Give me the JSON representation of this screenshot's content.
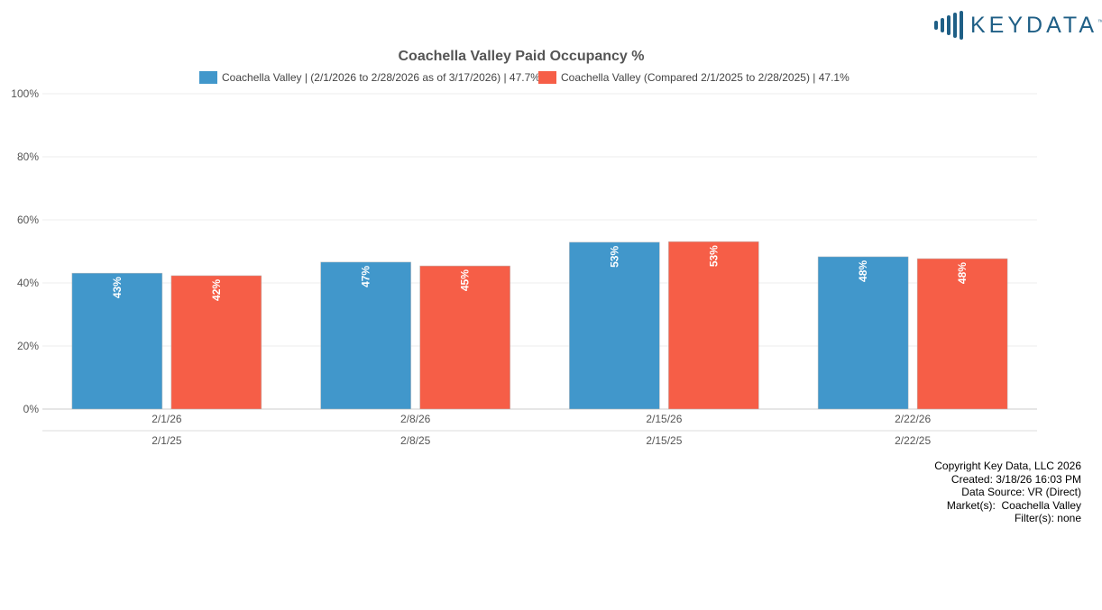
{
  "logo": {
    "text": "KEYDATA",
    "tm": "™"
  },
  "chart_data": {
    "type": "bar",
    "title": "Coachella Valley Paid Occupancy %",
    "categories": [
      "2/1/26",
      "2/8/26",
      "2/15/26",
      "2/22/26"
    ],
    "categories_secondary": [
      "2/1/25",
      "2/8/25",
      "2/15/25",
      "2/22/25"
    ],
    "series": [
      {
        "name": "Coachella Valley | (2/1/2026 to 2/28/2026 as of 3/17/2026) | 47.7%",
        "color": "#4197cb",
        "values": [
          43.1,
          46.6,
          52.9,
          48.3
        ],
        "labels": [
          "43%",
          "47%",
          "53%",
          "48%"
        ]
      },
      {
        "name": "Coachella Valley (Compared 2/1/2025 to 2/28/2025) | 47.1%",
        "color": "#f65e47",
        "values": [
          42.3,
          45.4,
          53.1,
          47.7
        ],
        "labels": [
          "42%",
          "45%",
          "53%",
          "48%"
        ]
      }
    ],
    "ylim": [
      0,
      100
    ],
    "yticks": [
      "0%",
      "20%",
      "40%",
      "60%",
      "80%",
      "100%"
    ],
    "legend": "top",
    "grid": true
  },
  "footer": [
    "Copyright Key Data, LLC 2026",
    "Created: 3/18/26 16:03 PM",
    "Data Source: VR (Direct)",
    "Market(s):  Coachella Valley",
    "Filter(s): none"
  ]
}
